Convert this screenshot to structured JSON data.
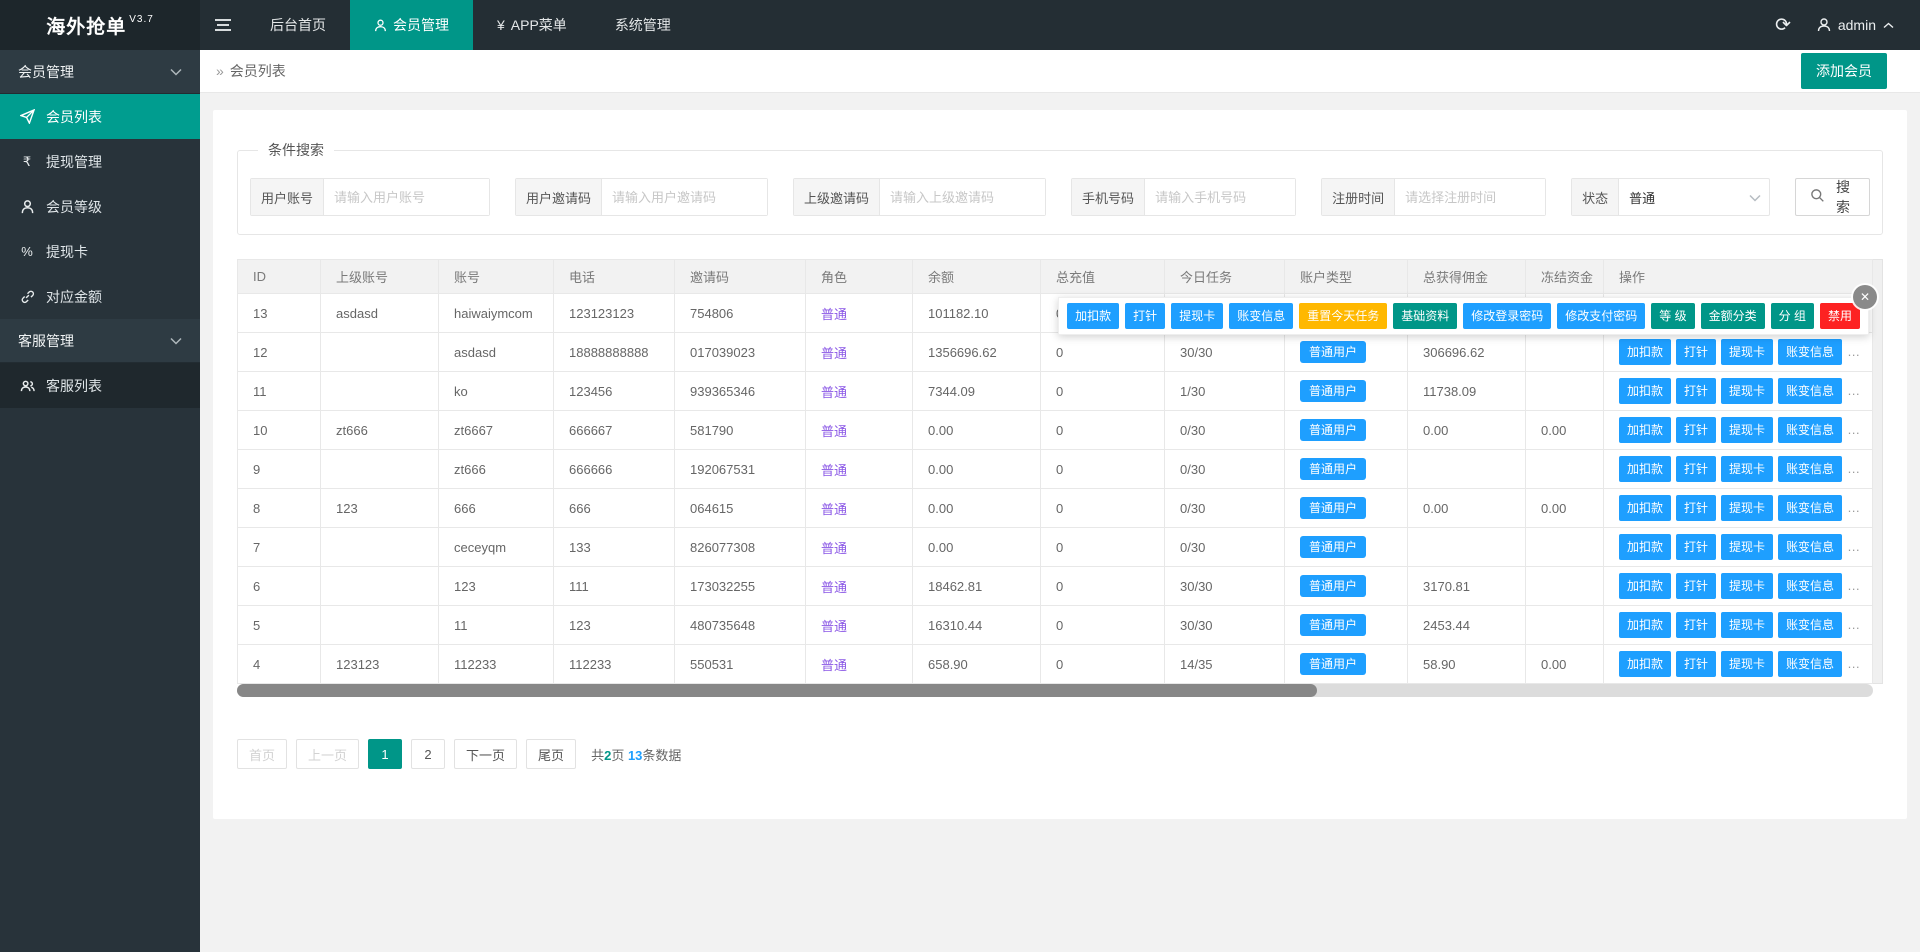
{
  "app": {
    "logo": "海外抢单",
    "version": "V3.7"
  },
  "navbar": {
    "items": [
      {
        "label": "后台首页",
        "icon": null,
        "active": false
      },
      {
        "label": "会员管理",
        "icon": "user",
        "active": true
      },
      {
        "label": "APP菜单",
        "icon": "yen",
        "active": false
      },
      {
        "label": "系统管理",
        "icon": null,
        "active": false
      }
    ],
    "user": "admin"
  },
  "sidebar": {
    "groups": [
      {
        "label": "会员管理",
        "items": [
          {
            "label": "会员列表",
            "icon": "paper-plane",
            "active": true,
            "sub": false
          },
          {
            "label": "提现管理",
            "icon": "rupee",
            "active": false,
            "sub": false
          },
          {
            "label": "会员等级",
            "icon": "person",
            "active": false,
            "sub": false
          },
          {
            "label": "提现卡",
            "icon": "percent",
            "active": false,
            "sub": false
          },
          {
            "label": "对应金额",
            "icon": "link",
            "active": false,
            "sub": false
          }
        ]
      },
      {
        "label": "客服管理",
        "items": [
          {
            "label": "客服列表",
            "icon": "users",
            "active": false,
            "sub": true
          }
        ]
      }
    ]
  },
  "breadcrumb": {
    "sep": "»",
    "label": "会员列表"
  },
  "toolbar": {
    "add_member_label": "添加会员"
  },
  "search": {
    "legend": "条件搜索",
    "fields": [
      {
        "type": "text",
        "label": "用户账号",
        "placeholder": "请输入用户账号",
        "value": ""
      },
      {
        "type": "text",
        "label": "用户邀请码",
        "placeholder": "请输入用户邀请码",
        "value": ""
      },
      {
        "type": "text",
        "label": "上级邀请码",
        "placeholder": "请输入上级邀请码",
        "value": ""
      },
      {
        "type": "text",
        "label": "手机号码",
        "placeholder": "请输入手机号码",
        "value": ""
      },
      {
        "type": "text",
        "label": "注册时间",
        "placeholder": "请选择注册时间",
        "value": ""
      },
      {
        "type": "select",
        "label": "状态",
        "value": "普通"
      }
    ],
    "search_button": "搜 索"
  },
  "table": {
    "columns": [
      "ID",
      "上级账号",
      "账号",
      "电话",
      "邀请码",
      "角色",
      "余额",
      "总充值",
      "今日任务",
      "账户类型",
      "总获得佣金",
      "冻结资金",
      "操作"
    ],
    "row_actions": [
      "加扣款",
      "打针",
      "提现卡",
      "账变信息"
    ],
    "ellipsis": "…",
    "rows": [
      {
        "id": "13",
        "parent": "asdasd",
        "account": "haiwaiymcom",
        "phone": "123123123",
        "invite": "754806",
        "role": "普通",
        "balance": "101182.10",
        "recharge": "0",
        "tasks": "",
        "type": "",
        "commission": "",
        "frozen": "",
        "expanded": true
      },
      {
        "id": "12",
        "parent": "",
        "account": "asdasd",
        "phone": "18888888888",
        "invite": "017039023",
        "role": "普通",
        "balance": "1356696.62",
        "recharge": "0",
        "tasks": "30/30",
        "type": "普通用户",
        "commission": "306696.62",
        "frozen": "",
        "expanded": false
      },
      {
        "id": "11",
        "parent": "",
        "account": "ko",
        "phone": "123456",
        "invite": "939365346",
        "role": "普通",
        "balance": "7344.09",
        "recharge": "0",
        "tasks": "1/30",
        "type": "普通用户",
        "commission": "11738.09",
        "frozen": "",
        "expanded": false
      },
      {
        "id": "10",
        "parent": "zt666",
        "account": "zt6667",
        "phone": "666667",
        "invite": "581790",
        "role": "普通",
        "balance": "0.00",
        "recharge": "0",
        "tasks": "0/30",
        "type": "普通用户",
        "commission": "0.00",
        "frozen": "0.00",
        "expanded": false
      },
      {
        "id": "9",
        "parent": "",
        "account": "zt666",
        "phone": "666666",
        "invite": "192067531",
        "role": "普通",
        "balance": "0.00",
        "recharge": "0",
        "tasks": "0/30",
        "type": "普通用户",
        "commission": "",
        "frozen": "",
        "expanded": false
      },
      {
        "id": "8",
        "parent": "123",
        "account": "666",
        "phone": "666",
        "invite": "064615",
        "role": "普通",
        "balance": "0.00",
        "recharge": "0",
        "tasks": "0/30",
        "type": "普通用户",
        "commission": "0.00",
        "frozen": "0.00",
        "expanded": false
      },
      {
        "id": "7",
        "parent": "",
        "account": "ceceyqm",
        "phone": "133",
        "invite": "826077308",
        "role": "普通",
        "balance": "0.00",
        "recharge": "0",
        "tasks": "0/30",
        "type": "普通用户",
        "commission": "",
        "frozen": "",
        "expanded": false
      },
      {
        "id": "6",
        "parent": "",
        "account": "123",
        "phone": "111",
        "invite": "173032255",
        "role": "普通",
        "balance": "18462.81",
        "recharge": "0",
        "tasks": "30/30",
        "type": "普通用户",
        "commission": "3170.81",
        "frozen": "",
        "expanded": false
      },
      {
        "id": "5",
        "parent": "",
        "account": "11",
        "phone": "123",
        "invite": "480735648",
        "role": "普通",
        "balance": "16310.44",
        "recharge": "0",
        "tasks": "30/30",
        "type": "普通用户",
        "commission": "2453.44",
        "frozen": "",
        "expanded": false
      },
      {
        "id": "4",
        "parent": "123123",
        "account": "112233",
        "phone": "112233",
        "invite": "550531",
        "role": "普通",
        "balance": "658.90",
        "recharge": "0",
        "tasks": "14/35",
        "type": "普通用户",
        "commission": "58.90",
        "frozen": "0.00",
        "expanded": false
      }
    ]
  },
  "popup": {
    "buttons": [
      {
        "label": "加扣款",
        "color": "blue"
      },
      {
        "label": "打针",
        "color": "blue"
      },
      {
        "label": "提现卡",
        "color": "blue"
      },
      {
        "label": "账变信息",
        "color": "blue"
      },
      {
        "label": "重置今天任务",
        "color": "yellow"
      },
      {
        "label": "基础资料",
        "color": "green"
      },
      {
        "label": "修改登录密码",
        "color": "blue"
      },
      {
        "label": "修改支付密码",
        "color": "blue"
      },
      {
        "label": "等 级",
        "color": "green"
      },
      {
        "label": "金额分类",
        "color": "green"
      },
      {
        "label": "分 组",
        "color": "green"
      },
      {
        "label": "禁用",
        "color": "red"
      }
    ],
    "close": "✕"
  },
  "pagination": {
    "first": "首页",
    "prev": "上一页",
    "pages": [
      "1",
      "2"
    ],
    "active_page": "1",
    "next": "下一页",
    "last": "尾页",
    "summary": {
      "prefix": "共",
      "total_pages": "2",
      "pages_suffix": "页",
      "total_items": "13",
      "items_suffix": "条数据"
    }
  },
  "colors": {
    "accent_teal": "#009688",
    "button_blue": "#1E9FFF",
    "button_yellow": "#FFB800",
    "button_green": "#009688",
    "button_red": "#fd2222",
    "role_purple": "#8a57e6",
    "navbar_dark": "#242e34",
    "sidebar_dark": "#28333a"
  }
}
